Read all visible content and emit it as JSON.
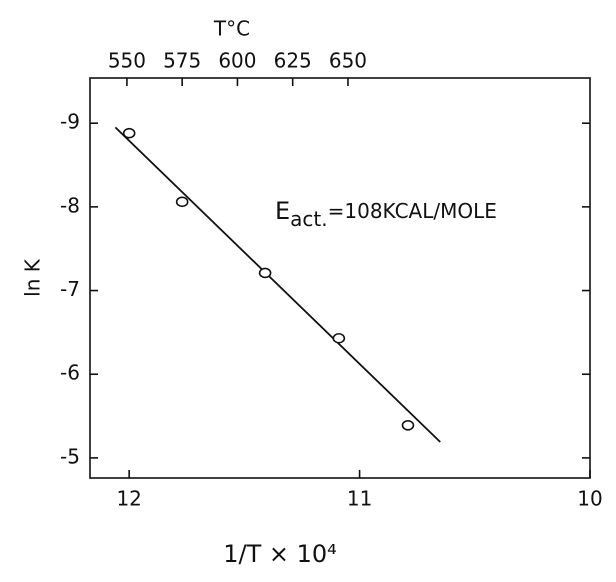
{
  "chart_data": {
    "type": "scatter",
    "x_label": "1/T × 10⁴",
    "y_label": "ln K",
    "x2_label": "T°C",
    "annotation": {
      "main": "E",
      "sub": "act.",
      "rest": "=108KCAL/MOLE"
    },
    "x": [
      12.0,
      11.77,
      11.41,
      11.09,
      10.79
    ],
    "values": [
      -8.88,
      -8.06,
      -7.21,
      -6.43,
      -5.39
    ],
    "fit": {
      "x": [
        12.06,
        10.65
      ],
      "values": [
        -8.95,
        -5.19
      ]
    },
    "color": "#111111",
    "xlim": [
      12.17,
      10
    ],
    "xticks": [
      12,
      11,
      10
    ],
    "ylim": [
      -4.76,
      -9.54
    ],
    "yticks": [
      -9,
      -8,
      -7,
      -6,
      -5
    ],
    "x2lim": [
      533.3,
      759.5
    ],
    "x2ticks": [
      550,
      575,
      600,
      625,
      650
    ]
  }
}
